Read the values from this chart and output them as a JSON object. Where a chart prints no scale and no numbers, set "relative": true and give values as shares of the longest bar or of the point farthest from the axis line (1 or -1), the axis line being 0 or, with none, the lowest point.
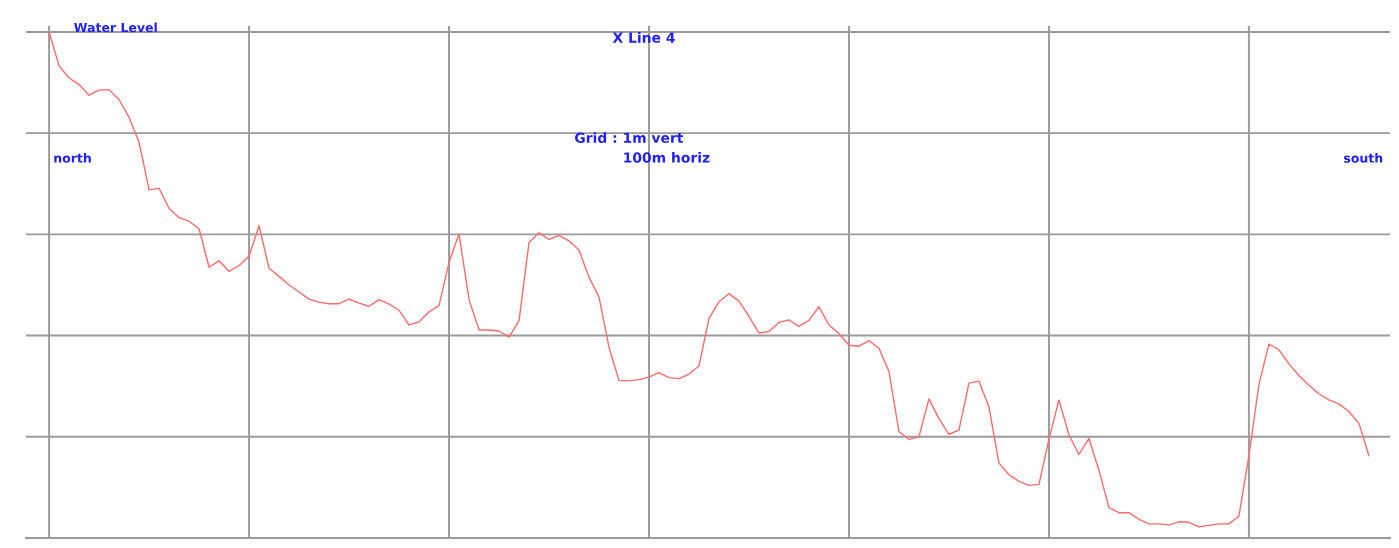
{
  "chart_data": {
    "type": "line",
    "relative": true,
    "title": "X Line 4",
    "annotations": [
      "Water Level",
      "north",
      "south",
      "Grid : 1m vert\n          100m horiz"
    ],
    "grid": true,
    "categories": [
      null,
      null,
      null,
      null,
      null,
      null,
      null,
      null,
      null,
      null,
      null,
      null,
      null,
      null,
      null,
      null,
      null,
      null,
      null,
      null,
      null,
      null,
      null,
      null,
      null,
      null,
      null,
      null,
      null,
      null,
      null,
      null,
      null,
      null,
      null,
      null,
      null,
      null,
      null,
      null,
      null,
      null,
      null,
      null,
      null,
      null,
      null,
      null,
      null,
      null,
      null,
      null,
      null,
      null,
      null,
      null,
      null,
      null,
      null,
      null,
      null,
      null,
      null,
      null,
      null,
      null,
      null,
      null,
      null,
      null,
      null,
      null,
      null,
      null,
      null,
      null,
      null,
      null,
      null,
      null,
      null,
      null,
      null,
      null,
      null,
      null,
      null,
      null,
      null,
      null,
      null,
      null,
      null,
      null,
      null,
      null,
      null,
      null,
      null,
      null,
      null,
      null,
      null,
      null,
      null,
      null,
      null,
      null,
      null,
      null,
      null,
      null,
      null,
      null,
      null,
      null,
      null,
      null,
      null,
      null,
      null,
      null,
      null,
      null,
      null,
      null,
      null,
      null,
      null,
      null,
      null,
      null,
      null
    ],
    "series": [
      {
        "color": "#ff6b6b",
        "values": [
          1.0,
          0.933,
          0.909,
          0.896,
          0.875,
          0.885,
          0.886,
          0.866,
          0.831,
          0.782,
          0.688,
          0.691,
          0.651,
          0.633,
          0.626,
          0.611,
          0.535,
          0.548,
          0.527,
          0.538,
          0.557,
          0.617,
          0.533,
          0.517,
          0.5,
          0.486,
          0.472,
          0.466,
          0.463,
          0.463,
          0.472,
          0.464,
          0.458,
          0.471,
          0.462,
          0.45,
          0.421,
          0.427,
          0.447,
          0.459,
          0.545,
          0.601,
          0.471,
          0.411,
          0.411,
          0.409,
          0.397,
          0.429,
          0.584,
          0.603,
          0.59,
          0.598,
          0.587,
          0.569,
          0.515,
          0.476,
          0.377,
          0.311,
          0.311,
          0.313,
          0.318,
          0.327,
          0.317,
          0.315,
          0.324,
          0.34,
          0.434,
          0.467,
          0.483,
          0.468,
          0.438,
          0.405,
          0.408,
          0.426,
          0.431,
          0.418,
          0.43,
          0.457,
          0.421,
          0.404,
          0.381,
          0.379,
          0.39,
          0.375,
          0.329,
          0.21,
          0.195,
          0.2,
          0.275,
          0.236,
          0.205,
          0.213,
          0.306,
          0.31,
          0.259,
          0.148,
          0.125,
          0.112,
          0.104,
          0.106,
          0.195,
          0.273,
          0.204,
          0.165,
          0.197,
          0.134,
          0.06,
          0.05,
          0.05,
          0.037,
          0.028,
          0.028,
          0.026,
          0.032,
          0.031,
          0.022,
          0.025,
          0.028,
          0.028,
          0.043,
          0.162,
          0.303,
          0.383,
          0.372,
          0.344,
          0.321,
          0.302,
          0.285,
          0.273,
          0.265,
          0.25,
          0.227,
          0.163
        ]
      }
    ]
  }
}
